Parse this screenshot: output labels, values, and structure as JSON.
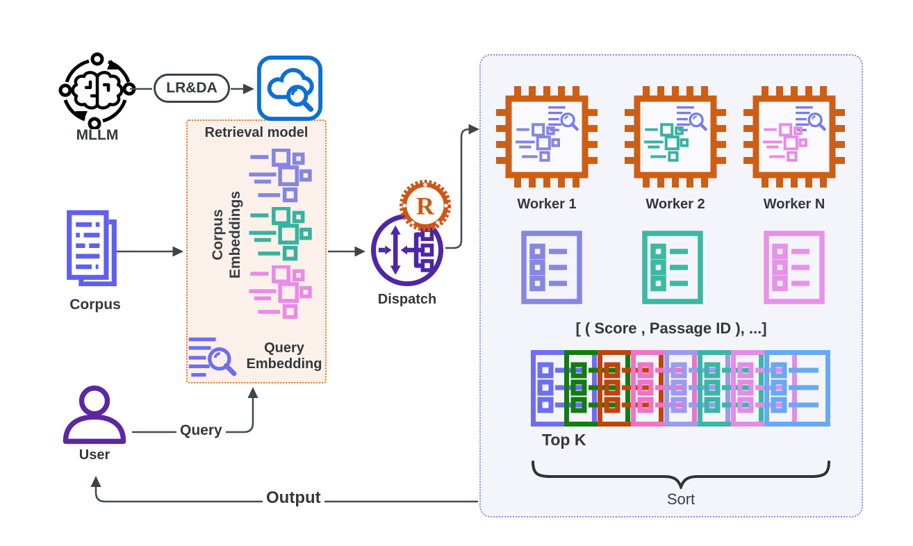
{
  "colors": {
    "mllm_blue": "#5BA4F2",
    "retrieval_blue": "#0D6FD4",
    "corpus_indigo": "#5F5FF0",
    "query_icon_indigo": "#6E6EF0",
    "embedding_purple": "#8486E0",
    "embedding_teal": "#38B2A0",
    "embedding_pink": "#E98BE5",
    "dispatch_purple": "#4E27A6",
    "rust_orange": "#CE5715",
    "chip_orange": "#CE5E14",
    "retrieval_box_border": "#E8731F",
    "retrieval_box_fill": "#FBF1EA",
    "pipeline_box_border": "#8B8BE8",
    "pipeline_box_fill": "#F4F4FB",
    "connector_gray": "#474C54",
    "text_dark": "#33373D"
  },
  "nodes": {
    "mllm": "MLLM",
    "lrda": "LR&DA",
    "corpus": "Corpus",
    "dispatch": "Dispatch",
    "user": "User"
  },
  "retrieval_box": {
    "title": "Retrieval model",
    "corpus_embeddings_line1": "Corpus",
    "corpus_embeddings_line2": "Embeddings",
    "query_embedding_line1": "Query",
    "query_embedding_line2": "Embedding"
  },
  "edges": {
    "query": "Query",
    "output": "Output"
  },
  "pipeline": {
    "workers": [
      {
        "label": "Worker 1"
      },
      {
        "label": "Worker 2"
      },
      {
        "label": "Worker N"
      }
    ],
    "results_caption": "[ ( Score , Passage ID ), ...]",
    "topk_label": "Top K",
    "sort_label": "Sort",
    "topk_segment_colors": [
      "#6D6DF5",
      "#117C11",
      "#BE4408",
      "#F272C8",
      "#9B9BEF",
      "#3AB6A6",
      "#E18DE8",
      "#67A9F3"
    ],
    "result_list_colors": [
      "#8587E2",
      "#3CB8A3",
      "#E791E9"
    ],
    "worker_embedding_colors": [
      "#8486E0",
      "#38B2A0",
      "#E98BE5"
    ]
  }
}
